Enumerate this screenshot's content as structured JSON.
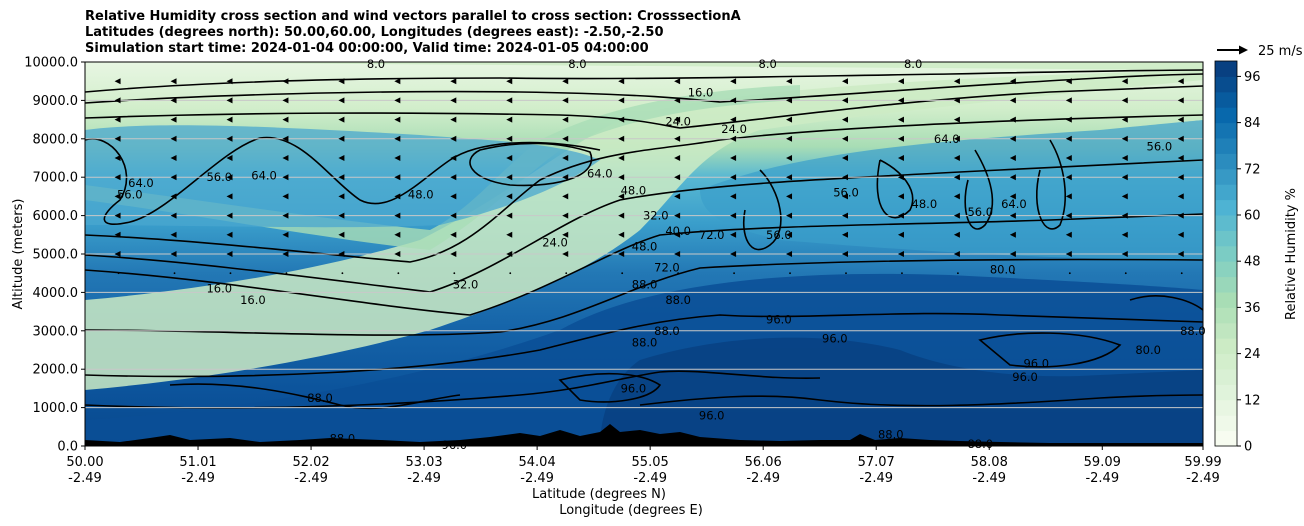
{
  "title_lines": [
    "Relative Humidity cross section and wind vectors parallel to cross section: CrosssectionA",
    "Latitudes (degrees north): 50.00,60.00, Longitudes (degrees east): -2.50,-2.50",
    "Simulation start time: 2024-01-04 00:00:00, Valid time: 2024-01-05 04:00:00"
  ],
  "chart_data": {
    "type": "heatmap",
    "title": "Relative Humidity cross section and wind vectors parallel to cross section: CrosssectionA",
    "xlabel": "Latitude (degrees N)",
    "xlabel2": "Longitude (degrees E)",
    "ylabel": "Altitude (meters)",
    "x_tick_lat": [
      "50.00",
      "51.01",
      "52.02",
      "53.03",
      "54.04",
      "55.05",
      "56.06",
      "57.07",
      "58.08",
      "59.09",
      "59.99"
    ],
    "x_tick_lon": [
      "-2.49",
      "-2.49",
      "-2.49",
      "-2.49",
      "-2.49",
      "-2.49",
      "-2.49",
      "-2.49",
      "-2.49",
      "-2.49",
      "-2.49"
    ],
    "x_ticks_values": [
      50.0,
      51.01,
      52.02,
      53.03,
      54.04,
      55.05,
      56.06,
      57.07,
      58.08,
      59.09,
      59.99
    ],
    "xlim": [
      50.0,
      59.99
    ],
    "y_ticks": [
      "0.0",
      "1000.0",
      "2000.0",
      "3000.0",
      "4000.0",
      "5000.0",
      "6000.0",
      "7000.0",
      "8000.0",
      "9000.0",
      "10000.0"
    ],
    "y_tick_values": [
      0,
      1000,
      2000,
      3000,
      4000,
      5000,
      6000,
      7000,
      8000,
      9000,
      10000
    ],
    "ylim": [
      0,
      10000
    ],
    "grid": true,
    "colorbar": {
      "label": "Relative Humidity %",
      "ticks": [
        "0",
        "12",
        "24",
        "36",
        "48",
        "60",
        "72",
        "84",
        "96"
      ],
      "tick_values": [
        0,
        12,
        24,
        36,
        48,
        60,
        72,
        84,
        96
      ],
      "range": [
        0,
        100
      ]
    },
    "quiver_key": {
      "label": "25 m/s",
      "value": 25
    },
    "contour_labels": [
      {
        "text": "8.0",
        "lat": 52.6,
        "alt": 9950
      },
      {
        "text": "8.0",
        "lat": 54.4,
        "alt": 9950
      },
      {
        "text": "8.0",
        "lat": 56.1,
        "alt": 9950
      },
      {
        "text": "8.0",
        "lat": 57.4,
        "alt": 9950
      },
      {
        "text": "16.0",
        "lat": 55.5,
        "alt": 9200
      },
      {
        "text": "24.0",
        "lat": 55.3,
        "alt": 8450
      },
      {
        "text": "24.0",
        "lat": 55.8,
        "alt": 8250
      },
      {
        "text": "64.0",
        "lat": 57.7,
        "alt": 8000
      },
      {
        "text": "56.0",
        "lat": 59.6,
        "alt": 7800
      },
      {
        "text": "64.0",
        "lat": 50.5,
        "alt": 6850
      },
      {
        "text": "56.0",
        "lat": 50.4,
        "alt": 6550
      },
      {
        "text": "56.0",
        "lat": 51.2,
        "alt": 7000
      },
      {
        "text": "64.0",
        "lat": 51.6,
        "alt": 7050
      },
      {
        "text": "48.0",
        "lat": 53.0,
        "alt": 6550
      },
      {
        "text": "64.0",
        "lat": 54.6,
        "alt": 7100
      },
      {
        "text": "48.0",
        "lat": 54.9,
        "alt": 6650
      },
      {
        "text": "56.0",
        "lat": 56.8,
        "alt": 6600
      },
      {
        "text": "48.0",
        "lat": 57.5,
        "alt": 6300
      },
      {
        "text": "56.0",
        "lat": 58.0,
        "alt": 6100
      },
      {
        "text": "64.0",
        "lat": 58.3,
        "alt": 6300
      },
      {
        "text": "32.0",
        "lat": 55.1,
        "alt": 6000
      },
      {
        "text": "40.0",
        "lat": 55.3,
        "alt": 5600
      },
      {
        "text": "48.0",
        "lat": 55.0,
        "alt": 5200
      },
      {
        "text": "72.0",
        "lat": 55.6,
        "alt": 5500
      },
      {
        "text": "56.0",
        "lat": 56.2,
        "alt": 5500
      },
      {
        "text": "72.0",
        "lat": 55.2,
        "alt": 4650
      },
      {
        "text": "88.0",
        "lat": 55.0,
        "alt": 4200
      },
      {
        "text": "88.0",
        "lat": 55.3,
        "alt": 3800
      },
      {
        "text": "24.0",
        "lat": 54.2,
        "alt": 5300
      },
      {
        "text": "32.0",
        "lat": 53.4,
        "alt": 4200
      },
      {
        "text": "16.0",
        "lat": 51.2,
        "alt": 4100
      },
      {
        "text": "16.0",
        "lat": 51.5,
        "alt": 3800
      },
      {
        "text": "80.0",
        "lat": 58.2,
        "alt": 4600
      },
      {
        "text": "96.0",
        "lat": 56.2,
        "alt": 3300
      },
      {
        "text": "88.0",
        "lat": 55.2,
        "alt": 3000
      },
      {
        "text": "88.0",
        "lat": 55.0,
        "alt": 2700
      },
      {
        "text": "96.0",
        "lat": 56.7,
        "alt": 2800
      },
      {
        "text": "96.0",
        "lat": 58.5,
        "alt": 2150
      },
      {
        "text": "96.0",
        "lat": 58.4,
        "alt": 1800
      },
      {
        "text": "80.0",
        "lat": 59.5,
        "alt": 2500
      },
      {
        "text": "88.0",
        "lat": 59.9,
        "alt": 3000
      },
      {
        "text": "88.0",
        "lat": 52.1,
        "alt": 1250
      },
      {
        "text": "88.0",
        "lat": 52.3,
        "alt": 200
      },
      {
        "text": "96.0",
        "lat": 54.9,
        "alt": 1500
      },
      {
        "text": "96.0",
        "lat": 55.6,
        "alt": 800
      },
      {
        "text": "88.0",
        "lat": 57.2,
        "alt": 300
      },
      {
        "text": "88.0",
        "lat": 58.0,
        "alt": 50
      },
      {
        "text": "96.0",
        "lat": 53.3,
        "alt": 20
      }
    ]
  },
  "colors": {
    "colormap": [
      "#f7fcf0",
      "#e0f3db",
      "#ccebc5",
      "#a8ddb5",
      "#7bccc4",
      "#4eb3d3",
      "#2b8cbe",
      "#0868ac",
      "#084081"
    ],
    "terrain": "#000000",
    "contour": "#000000"
  }
}
